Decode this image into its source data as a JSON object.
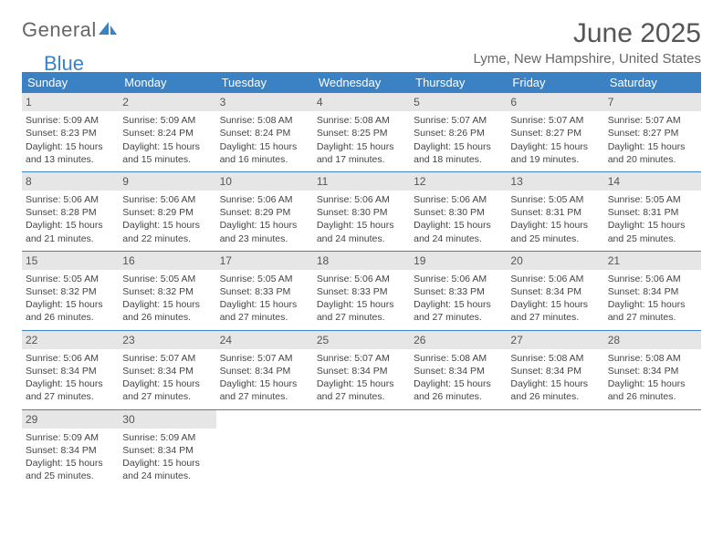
{
  "logo": {
    "part1": "General",
    "part2": "Blue"
  },
  "title": "June 2025",
  "location": "Lyme, New Hampshire, United States",
  "colors": {
    "header_bg": "#3a82c4",
    "header_text": "#ffffff",
    "daynum_bg": "#e6e6e6",
    "text": "#444444",
    "title_text": "#555555",
    "week_border": "#3a82c4"
  },
  "day_headers": [
    "Sunday",
    "Monday",
    "Tuesday",
    "Wednesday",
    "Thursday",
    "Friday",
    "Saturday"
  ],
  "weeks": [
    [
      {
        "n": "1",
        "sr": "Sunrise: 5:09 AM",
        "ss": "Sunset: 8:23 PM",
        "d1": "Daylight: 15 hours",
        "d2": "and 13 minutes."
      },
      {
        "n": "2",
        "sr": "Sunrise: 5:09 AM",
        "ss": "Sunset: 8:24 PM",
        "d1": "Daylight: 15 hours",
        "d2": "and 15 minutes."
      },
      {
        "n": "3",
        "sr": "Sunrise: 5:08 AM",
        "ss": "Sunset: 8:24 PM",
        "d1": "Daylight: 15 hours",
        "d2": "and 16 minutes."
      },
      {
        "n": "4",
        "sr": "Sunrise: 5:08 AM",
        "ss": "Sunset: 8:25 PM",
        "d1": "Daylight: 15 hours",
        "d2": "and 17 minutes."
      },
      {
        "n": "5",
        "sr": "Sunrise: 5:07 AM",
        "ss": "Sunset: 8:26 PM",
        "d1": "Daylight: 15 hours",
        "d2": "and 18 minutes."
      },
      {
        "n": "6",
        "sr": "Sunrise: 5:07 AM",
        "ss": "Sunset: 8:27 PM",
        "d1": "Daylight: 15 hours",
        "d2": "and 19 minutes."
      },
      {
        "n": "7",
        "sr": "Sunrise: 5:07 AM",
        "ss": "Sunset: 8:27 PM",
        "d1": "Daylight: 15 hours",
        "d2": "and 20 minutes."
      }
    ],
    [
      {
        "n": "8",
        "sr": "Sunrise: 5:06 AM",
        "ss": "Sunset: 8:28 PM",
        "d1": "Daylight: 15 hours",
        "d2": "and 21 minutes."
      },
      {
        "n": "9",
        "sr": "Sunrise: 5:06 AM",
        "ss": "Sunset: 8:29 PM",
        "d1": "Daylight: 15 hours",
        "d2": "and 22 minutes."
      },
      {
        "n": "10",
        "sr": "Sunrise: 5:06 AM",
        "ss": "Sunset: 8:29 PM",
        "d1": "Daylight: 15 hours",
        "d2": "and 23 minutes."
      },
      {
        "n": "11",
        "sr": "Sunrise: 5:06 AM",
        "ss": "Sunset: 8:30 PM",
        "d1": "Daylight: 15 hours",
        "d2": "and 24 minutes."
      },
      {
        "n": "12",
        "sr": "Sunrise: 5:06 AM",
        "ss": "Sunset: 8:30 PM",
        "d1": "Daylight: 15 hours",
        "d2": "and 24 minutes."
      },
      {
        "n": "13",
        "sr": "Sunrise: 5:05 AM",
        "ss": "Sunset: 8:31 PM",
        "d1": "Daylight: 15 hours",
        "d2": "and 25 minutes."
      },
      {
        "n": "14",
        "sr": "Sunrise: 5:05 AM",
        "ss": "Sunset: 8:31 PM",
        "d1": "Daylight: 15 hours",
        "d2": "and 25 minutes."
      }
    ],
    [
      {
        "n": "15",
        "sr": "Sunrise: 5:05 AM",
        "ss": "Sunset: 8:32 PM",
        "d1": "Daylight: 15 hours",
        "d2": "and 26 minutes."
      },
      {
        "n": "16",
        "sr": "Sunrise: 5:05 AM",
        "ss": "Sunset: 8:32 PM",
        "d1": "Daylight: 15 hours",
        "d2": "and 26 minutes."
      },
      {
        "n": "17",
        "sr": "Sunrise: 5:05 AM",
        "ss": "Sunset: 8:33 PM",
        "d1": "Daylight: 15 hours",
        "d2": "and 27 minutes."
      },
      {
        "n": "18",
        "sr": "Sunrise: 5:06 AM",
        "ss": "Sunset: 8:33 PM",
        "d1": "Daylight: 15 hours",
        "d2": "and 27 minutes."
      },
      {
        "n": "19",
        "sr": "Sunrise: 5:06 AM",
        "ss": "Sunset: 8:33 PM",
        "d1": "Daylight: 15 hours",
        "d2": "and 27 minutes."
      },
      {
        "n": "20",
        "sr": "Sunrise: 5:06 AM",
        "ss": "Sunset: 8:34 PM",
        "d1": "Daylight: 15 hours",
        "d2": "and 27 minutes."
      },
      {
        "n": "21",
        "sr": "Sunrise: 5:06 AM",
        "ss": "Sunset: 8:34 PM",
        "d1": "Daylight: 15 hours",
        "d2": "and 27 minutes."
      }
    ],
    [
      {
        "n": "22",
        "sr": "Sunrise: 5:06 AM",
        "ss": "Sunset: 8:34 PM",
        "d1": "Daylight: 15 hours",
        "d2": "and 27 minutes."
      },
      {
        "n": "23",
        "sr": "Sunrise: 5:07 AM",
        "ss": "Sunset: 8:34 PM",
        "d1": "Daylight: 15 hours",
        "d2": "and 27 minutes."
      },
      {
        "n": "24",
        "sr": "Sunrise: 5:07 AM",
        "ss": "Sunset: 8:34 PM",
        "d1": "Daylight: 15 hours",
        "d2": "and 27 minutes."
      },
      {
        "n": "25",
        "sr": "Sunrise: 5:07 AM",
        "ss": "Sunset: 8:34 PM",
        "d1": "Daylight: 15 hours",
        "d2": "and 27 minutes."
      },
      {
        "n": "26",
        "sr": "Sunrise: 5:08 AM",
        "ss": "Sunset: 8:34 PM",
        "d1": "Daylight: 15 hours",
        "d2": "and 26 minutes."
      },
      {
        "n": "27",
        "sr": "Sunrise: 5:08 AM",
        "ss": "Sunset: 8:34 PM",
        "d1": "Daylight: 15 hours",
        "d2": "and 26 minutes."
      },
      {
        "n": "28",
        "sr": "Sunrise: 5:08 AM",
        "ss": "Sunset: 8:34 PM",
        "d1": "Daylight: 15 hours",
        "d2": "and 26 minutes."
      }
    ],
    [
      {
        "n": "29",
        "sr": "Sunrise: 5:09 AM",
        "ss": "Sunset: 8:34 PM",
        "d1": "Daylight: 15 hours",
        "d2": "and 25 minutes."
      },
      {
        "n": "30",
        "sr": "Sunrise: 5:09 AM",
        "ss": "Sunset: 8:34 PM",
        "d1": "Daylight: 15 hours",
        "d2": "and 24 minutes."
      },
      null,
      null,
      null,
      null,
      null
    ]
  ]
}
